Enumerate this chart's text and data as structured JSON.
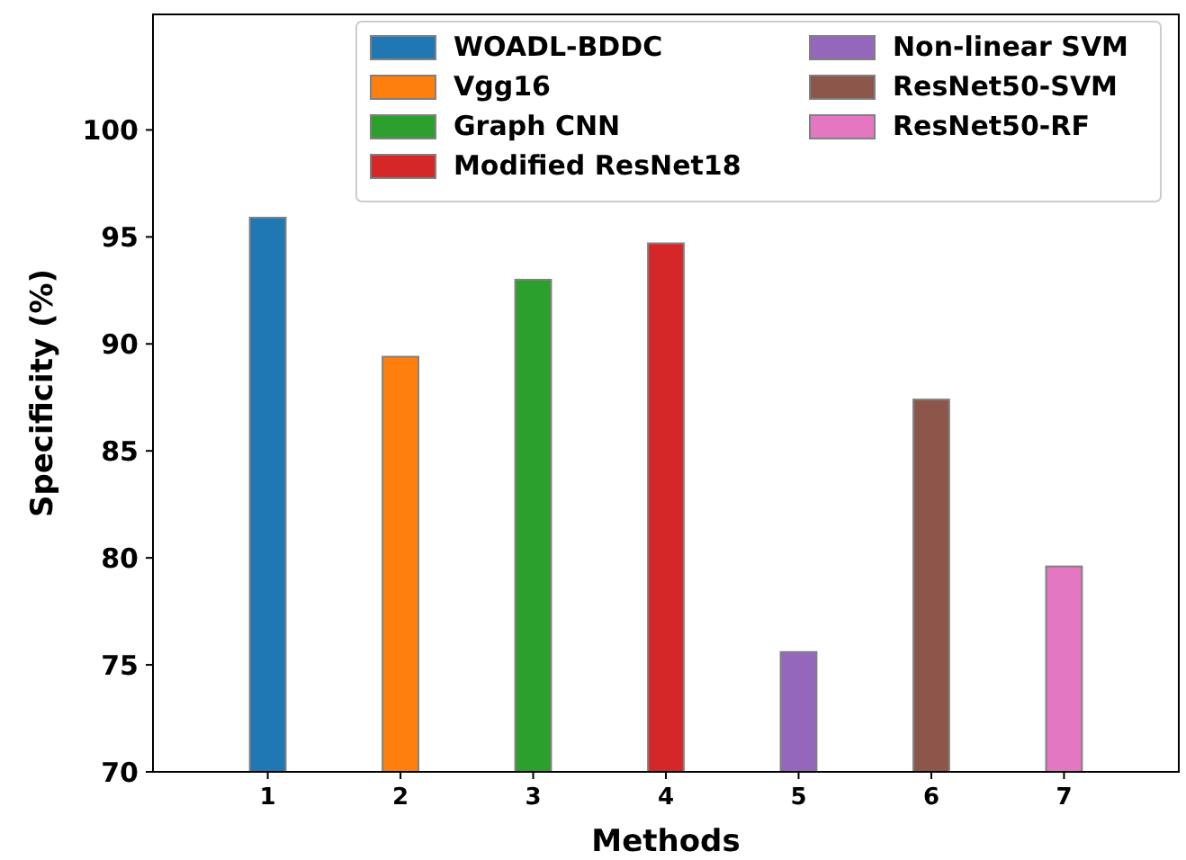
{
  "chart_data": {
    "type": "bar",
    "xlabel": "Methods",
    "ylabel": "Specificity (%)",
    "categories": [
      "1",
      "2",
      "3",
      "4",
      "5",
      "6",
      "7"
    ],
    "ylim": [
      70,
      105.4
    ],
    "yticks": [
      70,
      75,
      80,
      85,
      90,
      95,
      100
    ],
    "legend": "top right",
    "grid": false,
    "series": [
      {
        "name": "WOADL-BDDC",
        "color": "#1f77b4",
        "values": [
          95.9,
          null,
          null,
          null,
          null,
          null,
          null
        ]
      },
      {
        "name": "Vgg16",
        "color": "#ff7f0e",
        "values": [
          null,
          89.4,
          null,
          null,
          null,
          null,
          null
        ]
      },
      {
        "name": "Graph CNN",
        "color": "#2ca02c",
        "values": [
          null,
          null,
          93.0,
          null,
          null,
          null,
          null
        ]
      },
      {
        "name": "Modified ResNet18",
        "color": "#d62728",
        "values": [
          null,
          null,
          null,
          94.7,
          null,
          null,
          null
        ]
      },
      {
        "name": "Non-linear SVM",
        "color": "#9467bd",
        "values": [
          null,
          null,
          null,
          null,
          75.6,
          null,
          null
        ]
      },
      {
        "name": "ResNet50-SVM",
        "color": "#8c564b",
        "values": [
          null,
          null,
          null,
          null,
          null,
          87.4,
          null
        ]
      },
      {
        "name": "ResNet50-RF",
        "color": "#e377c2",
        "values": [
          null,
          null,
          null,
          null,
          null,
          null,
          79.6
        ]
      }
    ]
  }
}
